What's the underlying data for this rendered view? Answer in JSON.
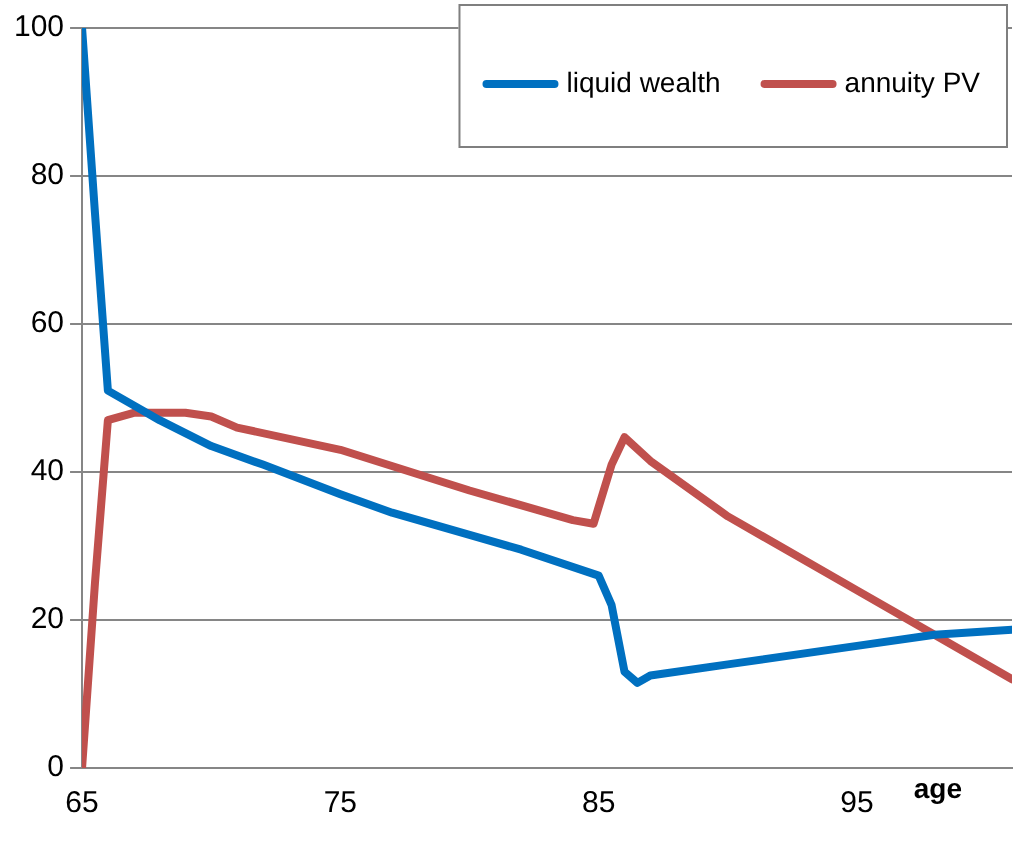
{
  "chart_data": {
    "type": "line",
    "xlabel": "age",
    "xlim": [
      65,
      101
    ],
    "xticks": [
      65,
      75,
      85,
      95
    ],
    "ylim": [
      0,
      100
    ],
    "yticks": [
      0,
      20,
      40,
      60,
      80,
      100
    ],
    "grid": "y",
    "legend": "top right",
    "marker": "none",
    "line_style": "solid",
    "series": [
      {
        "name": "liquid wealth",
        "color": "#0070c0",
        "x": [
          65,
          65.5,
          66,
          67,
          68,
          70,
          72,
          75,
          77,
          80,
          82,
          85,
          85.5,
          86,
          86.5,
          87,
          90,
          95,
          98,
          101
        ],
        "values": [
          100,
          75,
          51,
          49,
          47,
          43.5,
          41,
          37,
          34.5,
          31.5,
          29.5,
          26,
          22,
          13,
          11.5,
          12.5,
          14,
          16.5,
          18,
          18.7
        ]
      },
      {
        "name": "annuity PV",
        "color": "#c0504d",
        "x": [
          65,
          65.5,
          66,
          67,
          69,
          70,
          71,
          75,
          80,
          84,
          84.8,
          85.5,
          86,
          87,
          90,
          95,
          98,
          101
        ],
        "values": [
          0,
          25,
          47,
          48,
          48,
          47.5,
          46,
          43,
          37.5,
          33.5,
          33,
          41,
          44.7,
          41.5,
          34,
          24,
          18,
          12
        ]
      }
    ]
  }
}
